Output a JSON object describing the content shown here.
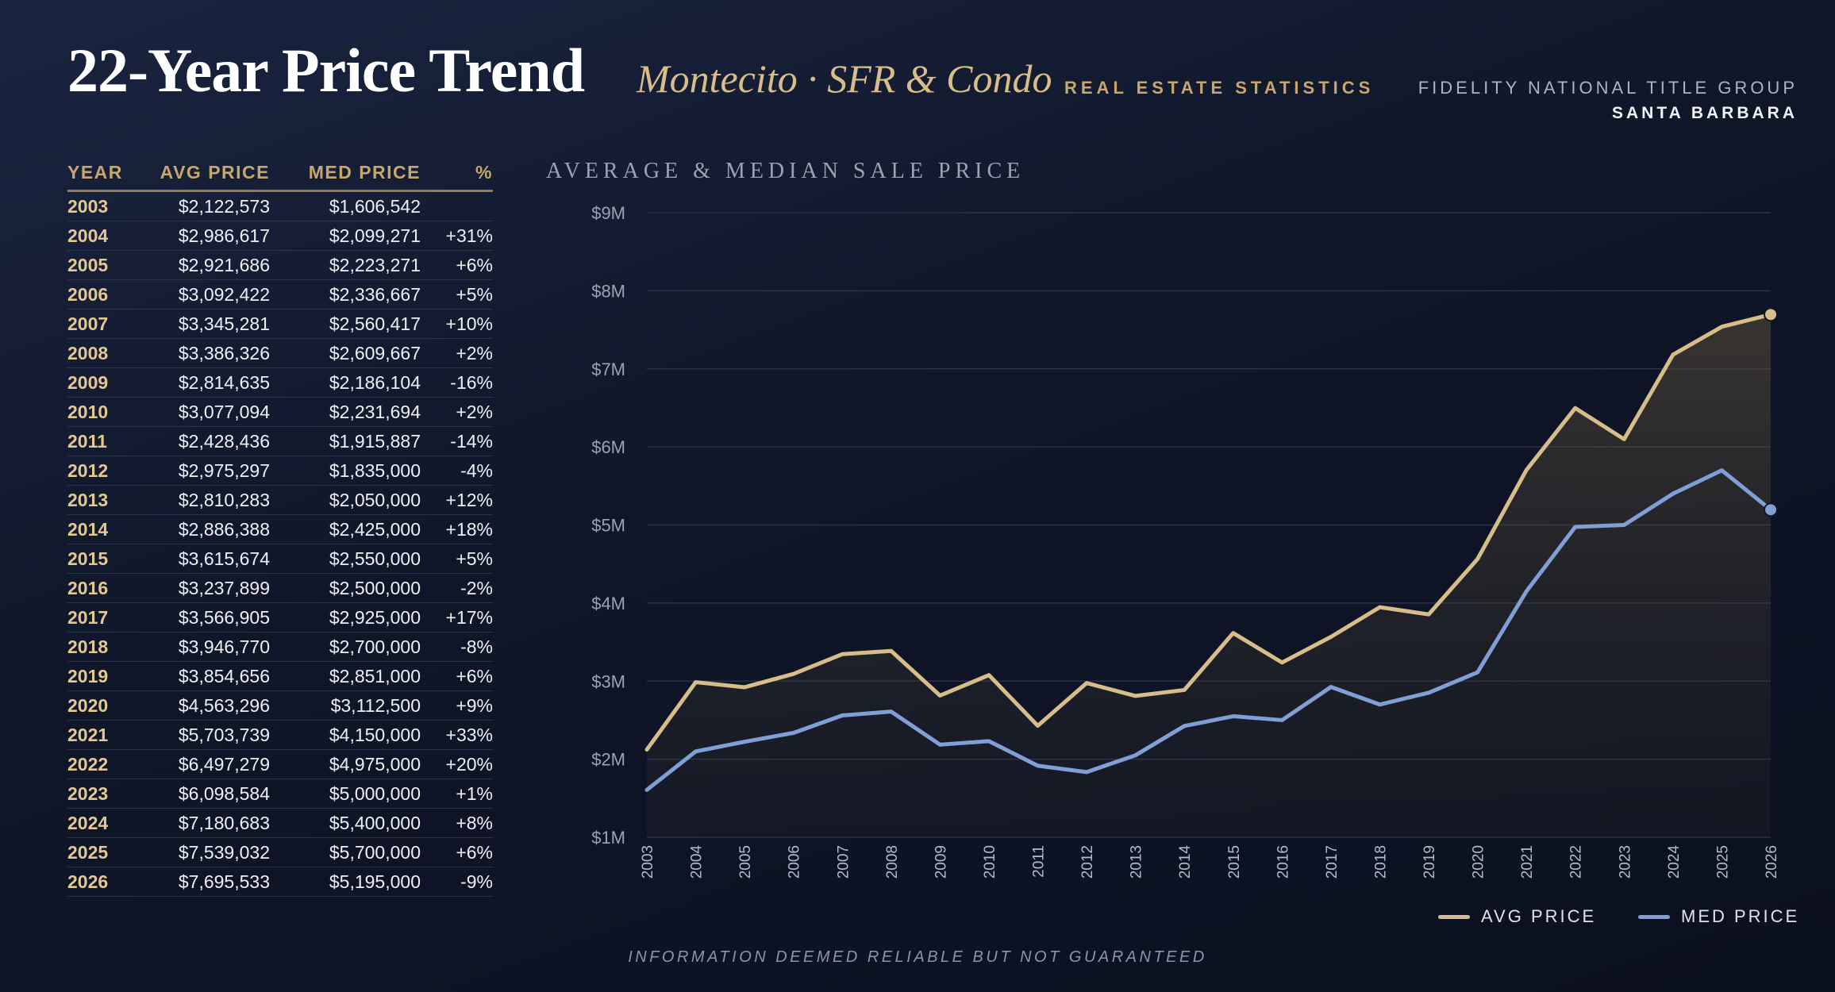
{
  "header": {
    "title": "22-Year Price Trend",
    "subtitle": "Montecito · SFR & Condo",
    "brand_stats": "REAL ESTATE STATISTICS",
    "brand_company": "FIDELITY NATIONAL TITLE GROUP",
    "brand_city": "SANTA BARBARA"
  },
  "table": {
    "headers": {
      "year": "YEAR",
      "avg": "AVG PRICE",
      "med": "MED PRICE",
      "pct": "%"
    },
    "rows": [
      {
        "year": "2003",
        "avg": "$2,122,573",
        "med": "$1,606,542",
        "pct": ""
      },
      {
        "year": "2004",
        "avg": "$2,986,617",
        "med": "$2,099,271",
        "pct": "+31%"
      },
      {
        "year": "2005",
        "avg": "$2,921,686",
        "med": "$2,223,271",
        "pct": "+6%"
      },
      {
        "year": "2006",
        "avg": "$3,092,422",
        "med": "$2,336,667",
        "pct": "+5%"
      },
      {
        "year": "2007",
        "avg": "$3,345,281",
        "med": "$2,560,417",
        "pct": "+10%"
      },
      {
        "year": "2008",
        "avg": "$3,386,326",
        "med": "$2,609,667",
        "pct": "+2%"
      },
      {
        "year": "2009",
        "avg": "$2,814,635",
        "med": "$2,186,104",
        "pct": "-16%"
      },
      {
        "year": "2010",
        "avg": "$3,077,094",
        "med": "$2,231,694",
        "pct": "+2%"
      },
      {
        "year": "2011",
        "avg": "$2,428,436",
        "med": "$1,915,887",
        "pct": "-14%"
      },
      {
        "year": "2012",
        "avg": "$2,975,297",
        "med": "$1,835,000",
        "pct": "-4%"
      },
      {
        "year": "2013",
        "avg": "$2,810,283",
        "med": "$2,050,000",
        "pct": "+12%"
      },
      {
        "year": "2014",
        "avg": "$2,886,388",
        "med": "$2,425,000",
        "pct": "+18%"
      },
      {
        "year": "2015",
        "avg": "$3,615,674",
        "med": "$2,550,000",
        "pct": "+5%"
      },
      {
        "year": "2016",
        "avg": "$3,237,899",
        "med": "$2,500,000",
        "pct": "-2%"
      },
      {
        "year": "2017",
        "avg": "$3,566,905",
        "med": "$2,925,000",
        "pct": "+17%"
      },
      {
        "year": "2018",
        "avg": "$3,946,770",
        "med": "$2,700,000",
        "pct": "-8%"
      },
      {
        "year": "2019",
        "avg": "$3,854,656",
        "med": "$2,851,000",
        "pct": "+6%"
      },
      {
        "year": "2020",
        "avg": "$4,563,296",
        "med": "$3,112,500",
        "pct": "+9%"
      },
      {
        "year": "2021",
        "avg": "$5,703,739",
        "med": "$4,150,000",
        "pct": "+33%"
      },
      {
        "year": "2022",
        "avg": "$6,497,279",
        "med": "$4,975,000",
        "pct": "+20%"
      },
      {
        "year": "2023",
        "avg": "$6,098,584",
        "med": "$5,000,000",
        "pct": "+1%"
      },
      {
        "year": "2024",
        "avg": "$7,180,683",
        "med": "$5,400,000",
        "pct": "+8%"
      },
      {
        "year": "2025",
        "avg": "$7,539,032",
        "med": "$5,700,000",
        "pct": "+6%"
      },
      {
        "year": "2026",
        "avg": "$7,695,533",
        "med": "$5,195,000",
        "pct": "-9%"
      }
    ]
  },
  "chart_data": {
    "type": "line",
    "title": "AVERAGE & MEDIAN SALE PRICE",
    "x": [
      "2003",
      "2004",
      "2005",
      "2006",
      "2007",
      "2008",
      "2009",
      "2010",
      "2011",
      "2012",
      "2013",
      "2014",
      "2015",
      "2016",
      "2017",
      "2018",
      "2019",
      "2020",
      "2021",
      "2022",
      "2023",
      "2024",
      "2025",
      "2026"
    ],
    "series": [
      {
        "name": "AVG PRICE",
        "color": "#d7bd8a",
        "values": [
          2122573,
          2986617,
          2921686,
          3092422,
          3345281,
          3386326,
          2814635,
          3077094,
          2428436,
          2975297,
          2810283,
          2886388,
          3615674,
          3237899,
          3566905,
          3946770,
          3854656,
          4563296,
          5703739,
          6497279,
          6098584,
          7180683,
          7539032,
          7695533
        ]
      },
      {
        "name": "MED PRICE",
        "color": "#7f9fd6",
        "values": [
          1606542,
          2099271,
          2223271,
          2336667,
          2560417,
          2609667,
          2186104,
          2231694,
          1915887,
          1835000,
          2050000,
          2425000,
          2550000,
          2500000,
          2925000,
          2700000,
          2851000,
          3112500,
          4150000,
          4975000,
          5000000,
          5400000,
          5700000,
          5195000
        ]
      }
    ],
    "ylim": [
      1000000,
      9000000
    ],
    "yticks": [
      {
        "value": 1000000,
        "label": "$1M"
      },
      {
        "value": 2000000,
        "label": "$2M"
      },
      {
        "value": 3000000,
        "label": "$3M"
      },
      {
        "value": 4000000,
        "label": "$4M"
      },
      {
        "value": 5000000,
        "label": "$5M"
      },
      {
        "value": 6000000,
        "label": "$6M"
      },
      {
        "value": 7000000,
        "label": "$7M"
      },
      {
        "value": 8000000,
        "label": "$8M"
      },
      {
        "value": 9000000,
        "label": "$9M"
      }
    ],
    "grid": true,
    "legend_position": "bottom-right"
  },
  "footer": "INFORMATION DEEMED RELIABLE BUT NOT GUARANTEED"
}
